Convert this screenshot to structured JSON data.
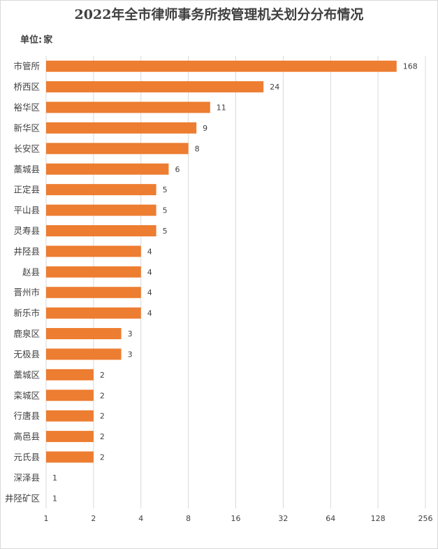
{
  "chart_data": {
    "type": "bar",
    "orientation": "horizontal",
    "title": "2022年全市律师事务所按管理机关划分分布情况",
    "unit_label": "单位:",
    "unit_value": "家",
    "categories": [
      "市管所",
      "桥西区",
      "裕华区",
      "新华区",
      "长安区",
      "藁城县",
      "正定县",
      "平山县",
      "灵寿县",
      "井陉县",
      "赵县",
      "晋州市",
      "新乐市",
      "鹿泉区",
      "无极县",
      "藁城区",
      "栾城区",
      "行唐县",
      "高邑县",
      "元氏县",
      "深泽县",
      "井陉矿区"
    ],
    "values": [
      168,
      24,
      11,
      9,
      8,
      6,
      5,
      5,
      5,
      4,
      4,
      4,
      4,
      3,
      3,
      2,
      2,
      2,
      2,
      2,
      1,
      1
    ],
    "x_scale": "log2",
    "xlim": [
      1,
      256
    ],
    "x_ticks": [
      1,
      2,
      4,
      8,
      16,
      32,
      64,
      128,
      256
    ],
    "grid": true,
    "data_labels": true,
    "bar_color": "#ed7d31"
  }
}
